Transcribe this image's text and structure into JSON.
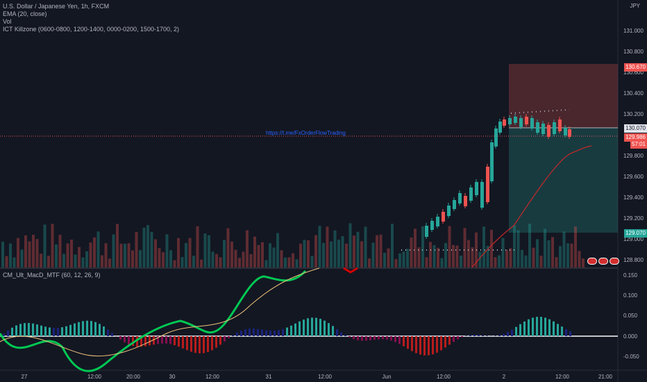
{
  "legend": {
    "symbol": "U.S. Dollar / Japanese Yen, 1h, FXCM",
    "ema": "EMA (20, close)",
    "vol": "Vol",
    "killzone": "ICT Killzone (0600-0800, 1200-1400, 0000-0200, 1500-1700, 2)"
  },
  "pane2": {
    "label": "CM_Ult_MacD_MTF (60, 12, 26, 9)"
  },
  "currency": "JPY",
  "url_text": "https://t.me/FxOrderFlowTrading",
  "price_axis": [
    "131.000",
    "130.800",
    "130.600",
    "130.400",
    "130.200",
    "129.800",
    "129.600",
    "129.400",
    "129.200",
    "129.000",
    "128.800"
  ],
  "macd_axis": [
    "0.150",
    "0.100",
    "0.050",
    "0.000",
    "-0.050"
  ],
  "time_axis": [
    "27",
    "12:00",
    "20:00",
    "30",
    "12:00",
    "31",
    "12:00",
    "Jun",
    "12:00",
    "2",
    "12:00",
    "21:00"
  ],
  "price_tags": {
    "target": "130.670",
    "entry": "130.070",
    "current": "129.986",
    "countdown": "57:01",
    "stop": "129.070"
  },
  "colors": {
    "bg": "#131722",
    "up": "#26a69a",
    "down": "#ef5350",
    "ema": "#c62828",
    "macd_line_up": "#00c853",
    "macd_line_down": "#d50000",
    "signal": "#f0c27b"
  },
  "icons": [
    "flag-badge-icon",
    "flag-badge-icon",
    "flag-badge-icon"
  ]
}
